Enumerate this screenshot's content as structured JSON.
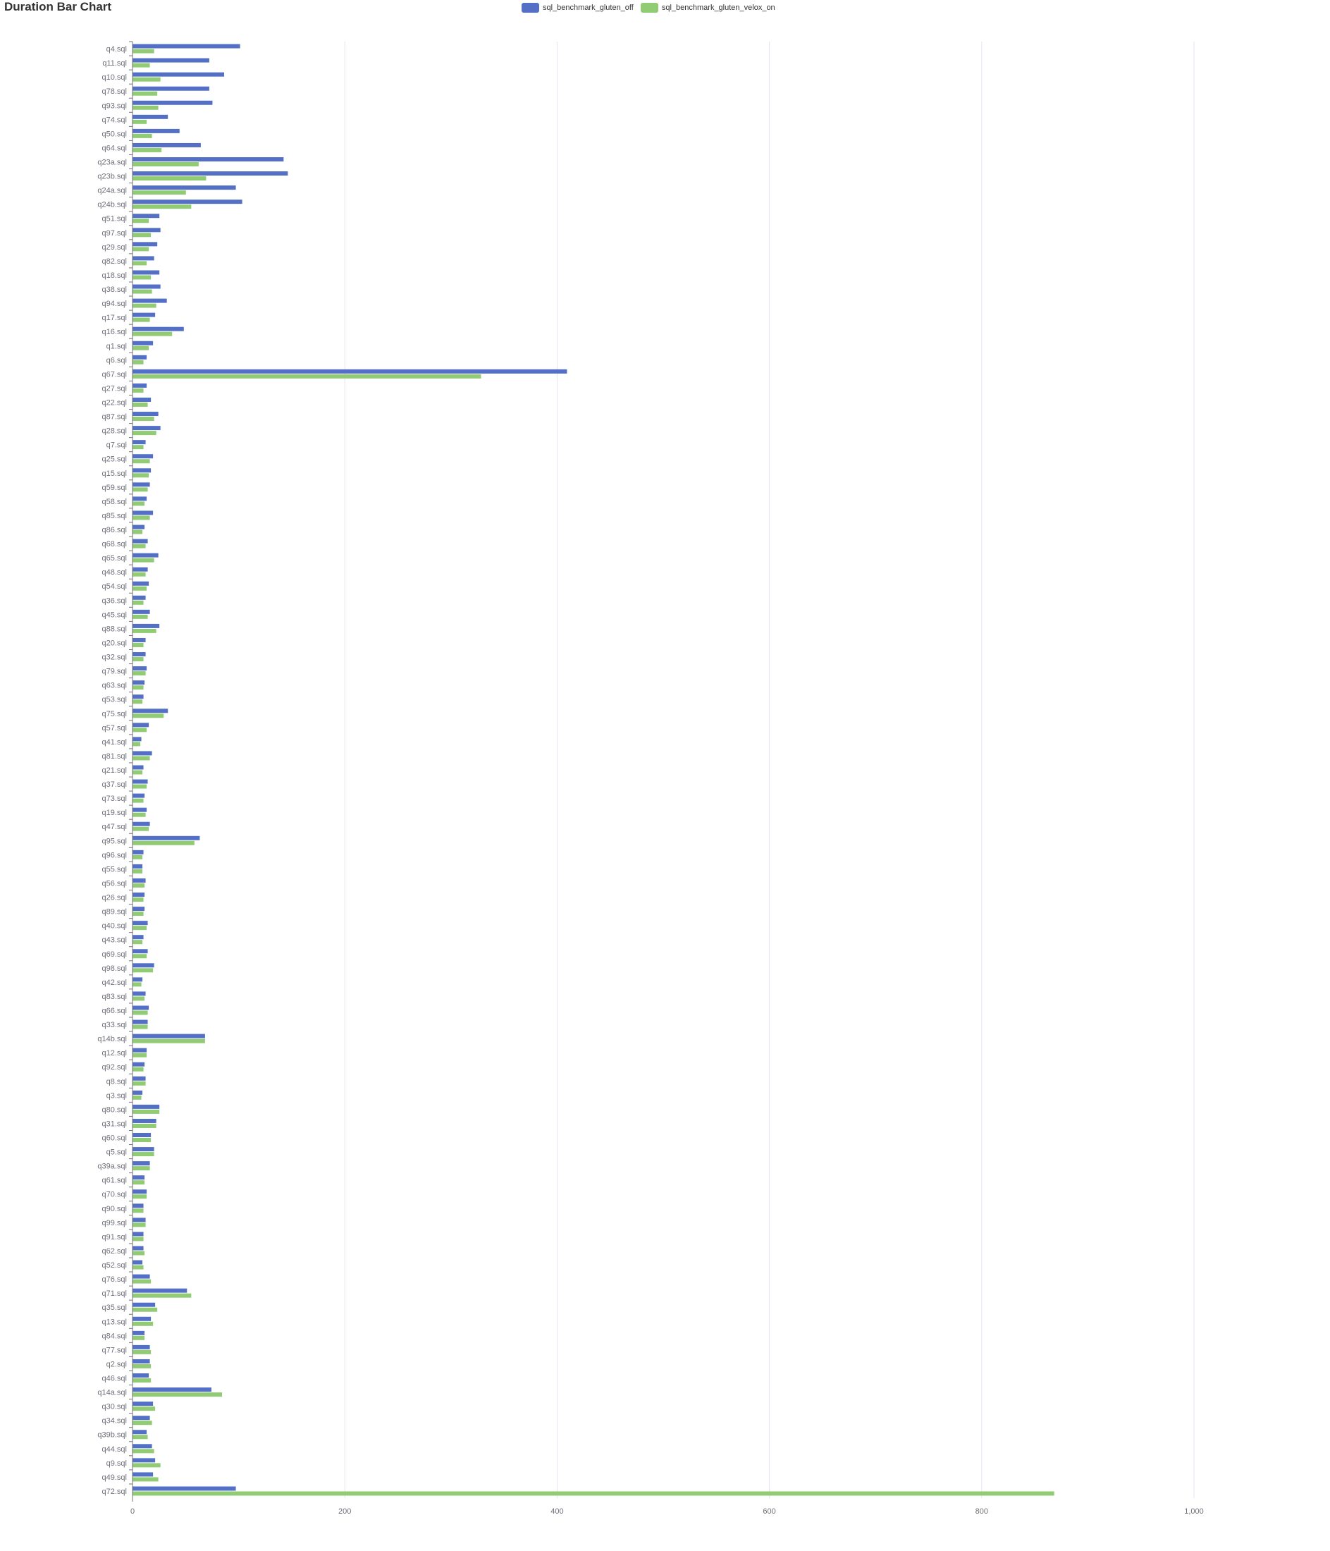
{
  "chart_data": {
    "type": "bar",
    "orientation": "horizontal",
    "title": "Duration Bar Chart",
    "xlim": [
      0,
      1000
    ],
    "xticks": [
      "0",
      "200",
      "400",
      "600",
      "800",
      "1,000"
    ],
    "legend_position": "top-center",
    "grid": true,
    "categories": [
      "q4.sql",
      "q11.sql",
      "q10.sql",
      "q78.sql",
      "q93.sql",
      "q74.sql",
      "q50.sql",
      "q64.sql",
      "q23a.sql",
      "q23b.sql",
      "q24a.sql",
      "q24b.sql",
      "q51.sql",
      "q97.sql",
      "q29.sql",
      "q82.sql",
      "q18.sql",
      "q38.sql",
      "q94.sql",
      "q17.sql",
      "q16.sql",
      "q1.sql",
      "q6.sql",
      "q67.sql",
      "q27.sql",
      "q22.sql",
      "q87.sql",
      "q28.sql",
      "q7.sql",
      "q25.sql",
      "q15.sql",
      "q59.sql",
      "q58.sql",
      "q85.sql",
      "q86.sql",
      "q68.sql",
      "q65.sql",
      "q48.sql",
      "q54.sql",
      "q36.sql",
      "q45.sql",
      "q88.sql",
      "q20.sql",
      "q32.sql",
      "q79.sql",
      "q63.sql",
      "q53.sql",
      "q75.sql",
      "q57.sql",
      "q41.sql",
      "q81.sql",
      "q21.sql",
      "q37.sql",
      "q73.sql",
      "q19.sql",
      "q47.sql",
      "q95.sql",
      "q96.sql",
      "q55.sql",
      "q56.sql",
      "q26.sql",
      "q89.sql",
      "q40.sql",
      "q43.sql",
      "q69.sql",
      "q98.sql",
      "q42.sql",
      "q83.sql",
      "q66.sql",
      "q33.sql",
      "q14b.sql",
      "q12.sql",
      "q92.sql",
      "q8.sql",
      "q3.sql",
      "q80.sql",
      "q31.sql",
      "q60.sql",
      "q5.sql",
      "q39a.sql",
      "q61.sql",
      "q70.sql",
      "q90.sql",
      "q99.sql",
      "q91.sql",
      "q62.sql",
      "q52.sql",
      "q76.sql",
      "q71.sql",
      "q35.sql",
      "q13.sql",
      "q84.sql",
      "q77.sql",
      "q2.sql",
      "q46.sql",
      "q14a.sql",
      "q30.sql",
      "q34.sql",
      "q39b.sql",
      "q44.sql",
      "q9.sql",
      "q49.sql",
      "q72.sql"
    ],
    "series": [
      {
        "name": "sql_benchmark_gluten_off",
        "color": "#5470c6",
        "values": [
          101,
          72,
          86,
          72,
          75,
          33,
          44,
          64,
          142,
          146,
          97,
          103,
          25,
          26,
          23,
          20,
          25,
          26,
          32,
          21,
          48,
          19,
          13,
          409,
          13,
          17,
          24,
          26,
          12,
          19,
          17,
          16,
          13,
          19,
          11,
          14,
          24,
          14,
          15,
          12,
          16,
          25,
          12,
          12,
          13,
          11,
          10,
          33,
          15,
          8,
          18,
          10,
          14,
          11,
          13,
          16,
          63,
          10,
          9,
          12,
          11,
          11,
          14,
          10,
          14,
          20,
          9,
          12,
          15,
          14,
          68,
          13,
          11,
          12,
          9,
          25,
          22,
          17,
          20,
          16,
          11,
          13,
          10,
          12,
          10,
          10,
          9,
          16,
          51,
          21,
          17,
          11,
          16,
          16,
          15,
          74,
          19,
          16,
          13,
          18,
          21,
          19,
          97
        ]
      },
      {
        "name": "sql_benchmark_gluten_velox_on",
        "color": "#91cc75",
        "values": [
          20,
          16,
          26,
          23,
          24,
          13,
          18,
          27,
          62,
          69,
          50,
          55,
          15,
          17,
          15,
          13,
          17,
          18,
          22,
          16,
          37,
          15,
          10,
          328,
          10,
          14,
          20,
          22,
          10,
          16,
          15,
          14,
          11,
          16,
          9,
          12,
          20,
          12,
          13,
          10,
          14,
          22,
          10,
          10,
          12,
          10,
          9,
          29,
          13,
          7,
          16,
          9,
          13,
          10,
          12,
          15,
          58,
          9,
          9,
          11,
          10,
          10,
          13,
          9,
          13,
          19,
          8,
          11,
          14,
          14,
          68,
          13,
          10,
          12,
          8,
          25,
          22,
          17,
          20,
          16,
          11,
          13,
          10,
          12,
          10,
          11,
          10,
          17,
          55,
          23,
          19,
          11,
          17,
          17,
          17,
          84,
          21,
          18,
          14,
          20,
          26,
          24,
          868
        ]
      }
    ]
  }
}
